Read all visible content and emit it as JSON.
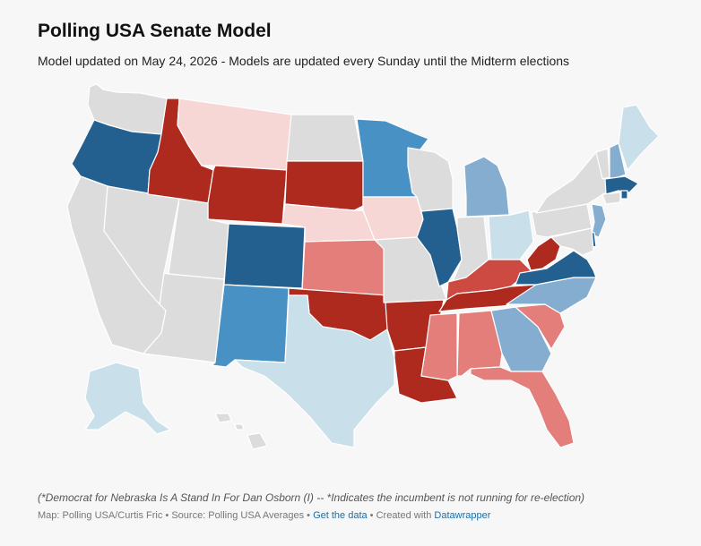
{
  "header": {
    "title": "Polling USA Senate Model",
    "subtitle": "Model updated on May 24, 2026 - Models are updated every Sunday until the Midterm elections"
  },
  "notes": "(*Democrat for Nebraska Is A Stand In For Dan Osborn (I) -- *Indicates the incumbent is not running for re-election)",
  "footer": {
    "source": "Map: Polling USA/Curtis Fric • Source: Polling USA Averages • ",
    "get_data": "Get the data",
    "separator": " • Created with ",
    "tool": "Datawrapper"
  },
  "colors": {
    "no_race": "#dcdcdc",
    "safe_dem": "#23608f",
    "likely_dem": "#4791c5",
    "lean_dem": "#84add0",
    "tilt_dem": "#c9e0ea",
    "safe_rep": "#ae2a1f",
    "likely_rep": "#cd4a43",
    "lean_rep": "#e47e7a",
    "tilt_rep": "#f7d7d5",
    "border": "#ffffff"
  },
  "states": [
    {
      "abbr": "WA",
      "rating": "no_race"
    },
    {
      "abbr": "OR",
      "rating": "safe_dem"
    },
    {
      "abbr": "CA",
      "rating": "no_race"
    },
    {
      "abbr": "NV",
      "rating": "no_race"
    },
    {
      "abbr": "ID",
      "rating": "safe_rep"
    },
    {
      "abbr": "MT",
      "rating": "tilt_rep"
    },
    {
      "abbr": "WY",
      "rating": "safe_rep"
    },
    {
      "abbr": "UT",
      "rating": "no_race"
    },
    {
      "abbr": "AZ",
      "rating": "no_race"
    },
    {
      "abbr": "CO",
      "rating": "safe_dem"
    },
    {
      "abbr": "NM",
      "rating": "likely_dem"
    },
    {
      "abbr": "ND",
      "rating": "no_race"
    },
    {
      "abbr": "SD",
      "rating": "safe_rep"
    },
    {
      "abbr": "NE",
      "rating": "tilt_rep"
    },
    {
      "abbr": "KS",
      "rating": "lean_rep"
    },
    {
      "abbr": "OK",
      "rating": "safe_rep"
    },
    {
      "abbr": "TX",
      "rating": "tilt_dem"
    },
    {
      "abbr": "MN",
      "rating": "likely_dem"
    },
    {
      "abbr": "IA",
      "rating": "tilt_rep"
    },
    {
      "abbr": "MO",
      "rating": "no_race"
    },
    {
      "abbr": "AR",
      "rating": "safe_rep"
    },
    {
      "abbr": "LA",
      "rating": "safe_rep"
    },
    {
      "abbr": "WI",
      "rating": "no_race"
    },
    {
      "abbr": "IL",
      "rating": "safe_dem"
    },
    {
      "abbr": "MI",
      "rating": "lean_dem"
    },
    {
      "abbr": "IN",
      "rating": "no_race"
    },
    {
      "abbr": "OH",
      "rating": "tilt_dem"
    },
    {
      "abbr": "KY",
      "rating": "likely_rep"
    },
    {
      "abbr": "TN",
      "rating": "safe_rep"
    },
    {
      "abbr": "MS",
      "rating": "lean_rep"
    },
    {
      "abbr": "AL",
      "rating": "lean_rep"
    },
    {
      "abbr": "GA",
      "rating": "lean_dem"
    },
    {
      "abbr": "FL",
      "rating": "lean_rep"
    },
    {
      "abbr": "SC",
      "rating": "lean_rep"
    },
    {
      "abbr": "NC",
      "rating": "lean_dem"
    },
    {
      "abbr": "VA",
      "rating": "safe_dem"
    },
    {
      "abbr": "WV",
      "rating": "safe_rep"
    },
    {
      "abbr": "PA",
      "rating": "no_race"
    },
    {
      "abbr": "NY",
      "rating": "no_race"
    },
    {
      "abbr": "NJ",
      "rating": "lean_dem"
    },
    {
      "abbr": "DE",
      "rating": "safe_dem"
    },
    {
      "abbr": "MD",
      "rating": "no_race"
    },
    {
      "abbr": "VT",
      "rating": "no_race"
    },
    {
      "abbr": "NH",
      "rating": "lean_dem"
    },
    {
      "abbr": "ME",
      "rating": "tilt_dem"
    },
    {
      "abbr": "MA",
      "rating": "safe_dem"
    },
    {
      "abbr": "RI",
      "rating": "safe_dem"
    },
    {
      "abbr": "CT",
      "rating": "no_race"
    },
    {
      "abbr": "AK",
      "rating": "tilt_dem"
    },
    {
      "abbr": "HI",
      "rating": "no_race"
    }
  ]
}
